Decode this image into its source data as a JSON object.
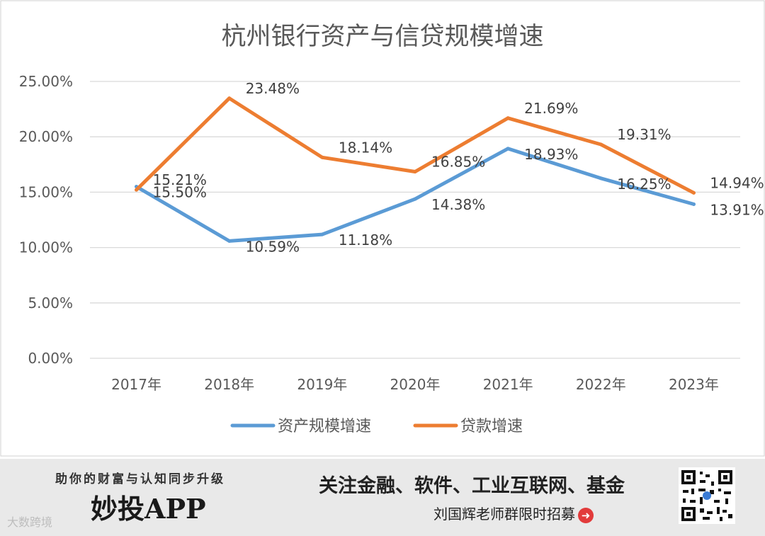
{
  "chart_data": {
    "type": "line",
    "title": "杭州银行资产与信贷规模增速",
    "categories": [
      "2017年",
      "2018年",
      "2019年",
      "2020年",
      "2021年",
      "2022年",
      "2023年"
    ],
    "y_ticks": [
      "0.00%",
      "5.00%",
      "10.00%",
      "15.00%",
      "20.00%",
      "25.00%"
    ],
    "ylim": [
      0,
      25
    ],
    "legend_position": "bottom",
    "series": [
      {
        "name": "资产规模增速",
        "color": "#5b9bd5",
        "values": [
          15.5,
          10.59,
          11.18,
          14.38,
          18.93,
          16.25,
          13.91
        ],
        "labels": [
          "15.50%",
          "10.59%",
          "11.18%",
          "14.38%",
          "18.93%",
          "16.25%",
          "13.91%"
        ]
      },
      {
        "name": "贷款增速",
        "color": "#ed7d31",
        "values": [
          15.21,
          23.48,
          18.14,
          16.85,
          21.69,
          19.31,
          14.94
        ],
        "labels": [
          "15.21%",
          "23.48%",
          "18.14%",
          "16.85%",
          "21.69%",
          "19.31%",
          "14.94%"
        ]
      }
    ]
  },
  "banner": {
    "slogan": "助你的财富与认知同步升级",
    "app_name": "妙投APP",
    "watermark": "大数跨境",
    "promo": "关注金融、软件、工业互联网、基金",
    "promo_sub": "刘国辉老师群限时招募",
    "arrow_icon": "➜"
  }
}
